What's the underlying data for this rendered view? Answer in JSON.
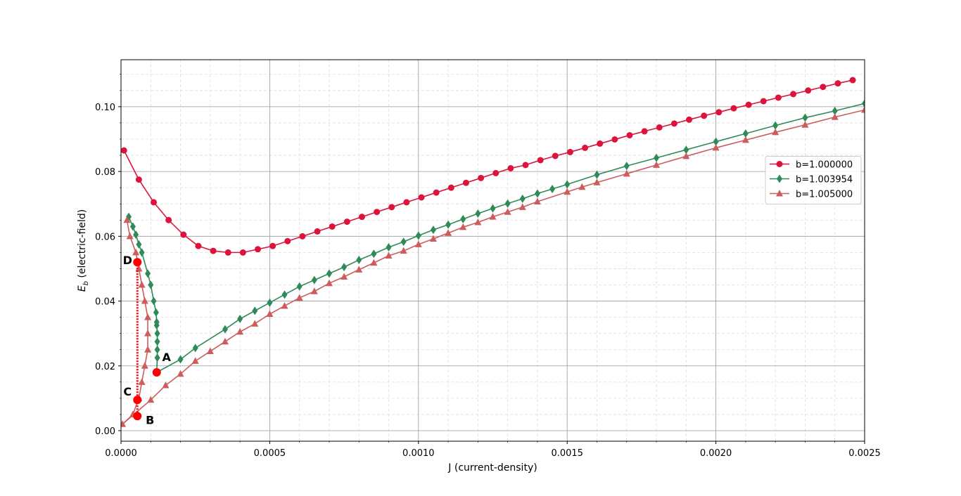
{
  "chart_data": {
    "type": "line",
    "xlabel": "J (current-density)",
    "ylabel": {
      "symbol": "E",
      "subscript": "b",
      "text": "(electric-field)"
    },
    "xlim": [
      0,
      0.0025
    ],
    "ylim": [
      -0.00325,
      0.1145
    ],
    "xticks": [
      {
        "value": 0,
        "label": "0.0000"
      },
      {
        "value": 0.0005,
        "label": "0.0005"
      },
      {
        "value": 0.001,
        "label": "0.0010"
      },
      {
        "value": 0.0015,
        "label": "0.0015"
      },
      {
        "value": 0.002,
        "label": "0.0020"
      },
      {
        "value": 0.0025,
        "label": "0.0025"
      }
    ],
    "yticks": [
      {
        "value": 0,
        "label": "0.00"
      },
      {
        "value": 0.02,
        "label": "0.02"
      },
      {
        "value": 0.04,
        "label": "0.04"
      },
      {
        "value": 0.06,
        "label": "0.06"
      },
      {
        "value": 0.08,
        "label": "0.08"
      },
      {
        "value": 0.1,
        "label": "0.10"
      }
    ],
    "grid": true,
    "minor_grid": true,
    "legend_loc": "center right",
    "series": [
      {
        "name": "b=1.000000",
        "color": "#dc143c",
        "marker": "circle",
        "x": [
          1e-05,
          6e-05,
          0.00011,
          0.00016,
          0.00021,
          0.00026,
          0.00031,
          0.00036,
          0.00041,
          0.00046,
          0.00051,
          0.00056,
          0.00061,
          0.00066,
          0.00071,
          0.00076,
          0.00081,
          0.00086,
          0.00091,
          0.00096,
          0.00101,
          0.00106,
          0.00111,
          0.00116,
          0.00121,
          0.00126,
          0.00131,
          0.00136,
          0.00141,
          0.00146,
          0.00151,
          0.00156,
          0.00161,
          0.00166,
          0.00171,
          0.00176,
          0.00181,
          0.00186,
          0.00191,
          0.00196,
          0.00201,
          0.00206,
          0.00211,
          0.00216,
          0.00221,
          0.00226,
          0.00231,
          0.00236,
          0.00241,
          0.00246
        ],
        "values": [
          0.0865,
          0.0775,
          0.0705,
          0.065,
          0.0605,
          0.057,
          0.0555,
          0.055,
          0.055,
          0.056,
          0.057,
          0.0585,
          0.06,
          0.0615,
          0.063,
          0.0645,
          0.066,
          0.0675,
          0.069,
          0.0705,
          0.072,
          0.0735,
          0.075,
          0.0765,
          0.078,
          0.0795,
          0.081,
          0.082,
          0.0835,
          0.0848,
          0.086,
          0.0873,
          0.0886,
          0.0899,
          0.0912,
          0.0924,
          0.0936,
          0.0948,
          0.096,
          0.0972,
          0.0983,
          0.0995,
          0.1006,
          0.1017,
          0.1028,
          0.1039,
          0.105,
          0.1061,
          0.1072,
          0.1082
        ]
      },
      {
        "name": "b=1.003954",
        "color": "#2e8b57",
        "marker": "diamond",
        "x": [
          2.6e-05,
          4e-05,
          5e-05,
          6e-05,
          7e-05,
          9e-05,
          0.0001,
          0.00011,
          0.000118,
          0.00012,
          0.00012,
          0.000122,
          0.000122,
          0.000122,
          0.000122,
          0.00012,
          0.0002,
          0.00025,
          0.00035,
          0.0004,
          0.00045,
          0.0005,
          0.00055,
          0.0006,
          0.00065,
          0.0007,
          0.00075,
          0.0008,
          0.00085,
          0.0009,
          0.00095,
          0.001,
          0.00105,
          0.0011,
          0.00115,
          0.0012,
          0.00125,
          0.0013,
          0.00135,
          0.0014,
          0.00145,
          0.0015,
          0.0016,
          0.0017,
          0.0018,
          0.0019,
          0.002,
          0.0021,
          0.0022,
          0.0023,
          0.0024,
          0.0025
        ],
        "values": [
          0.066,
          0.063,
          0.0605,
          0.0575,
          0.055,
          0.0485,
          0.045,
          0.04,
          0.0365,
          0.0335,
          0.0325,
          0.03,
          0.0275,
          0.025,
          0.0225,
          0.018,
          0.022,
          0.0255,
          0.0313,
          0.0345,
          0.037,
          0.0395,
          0.042,
          0.0445,
          0.0465,
          0.0485,
          0.0505,
          0.0527,
          0.0546,
          0.0566,
          0.0583,
          0.0602,
          0.062,
          0.0636,
          0.0653,
          0.067,
          0.0686,
          0.0701,
          0.0716,
          0.0732,
          0.0746,
          0.076,
          0.079,
          0.0817,
          0.0842,
          0.0867,
          0.0892,
          0.0917,
          0.0942,
          0.0966,
          0.0987,
          0.101
        ]
      },
      {
        "name": "b=1.005000",
        "color": "#cd5c5c",
        "marker": "triangle",
        "x": [
          2e-05,
          3e-05,
          5e-05,
          6e-05,
          7e-05,
          8e-05,
          9e-05,
          9e-05,
          9e-05,
          8e-05,
          7e-05,
          6e-05,
          4e-05,
          5e-06,
          0.0001,
          0.00015,
          0.0002,
          0.00025,
          0.0003,
          0.00035,
          0.0004,
          0.00045,
          0.0005,
          0.00055,
          0.0006,
          0.00065,
          0.0007,
          0.00075,
          0.0008,
          0.00085,
          0.0009,
          0.00095,
          0.001,
          0.00105,
          0.0011,
          0.00115,
          0.0012,
          0.00125,
          0.0013,
          0.00135,
          0.0014,
          0.0015,
          0.00155,
          0.0016,
          0.0017,
          0.0018,
          0.0019,
          0.002,
          0.0021,
          0.0022,
          0.0023,
          0.0024,
          0.0025
        ],
        "values": [
          0.065,
          0.06,
          0.055,
          0.05,
          0.045,
          0.04,
          0.035,
          0.03,
          0.025,
          0.02,
          0.015,
          0.01,
          0.005,
          0.002,
          0.0095,
          0.014,
          0.0175,
          0.0215,
          0.0245,
          0.0275,
          0.0305,
          0.033,
          0.036,
          0.0385,
          0.041,
          0.043,
          0.0455,
          0.0475,
          0.0497,
          0.0518,
          0.054,
          0.0555,
          0.0575,
          0.0592,
          0.061,
          0.0628,
          0.0643,
          0.066,
          0.0675,
          0.069,
          0.0707,
          0.0737,
          0.0752,
          0.0766,
          0.0793,
          0.082,
          0.0847,
          0.0873,
          0.0897,
          0.0921,
          0.0944,
          0.0968,
          0.099
        ]
      }
    ],
    "annotations": [
      {
        "label": "A",
        "x": 0.00012,
        "y": 0.018
      },
      {
        "label": "B",
        "x": 5.5e-05,
        "y": 0.0045
      },
      {
        "label": "C",
        "x": 5.5e-05,
        "y": 0.0095
      },
      {
        "label": "D",
        "x": 5.5e-05,
        "y": 0.052
      }
    ]
  }
}
